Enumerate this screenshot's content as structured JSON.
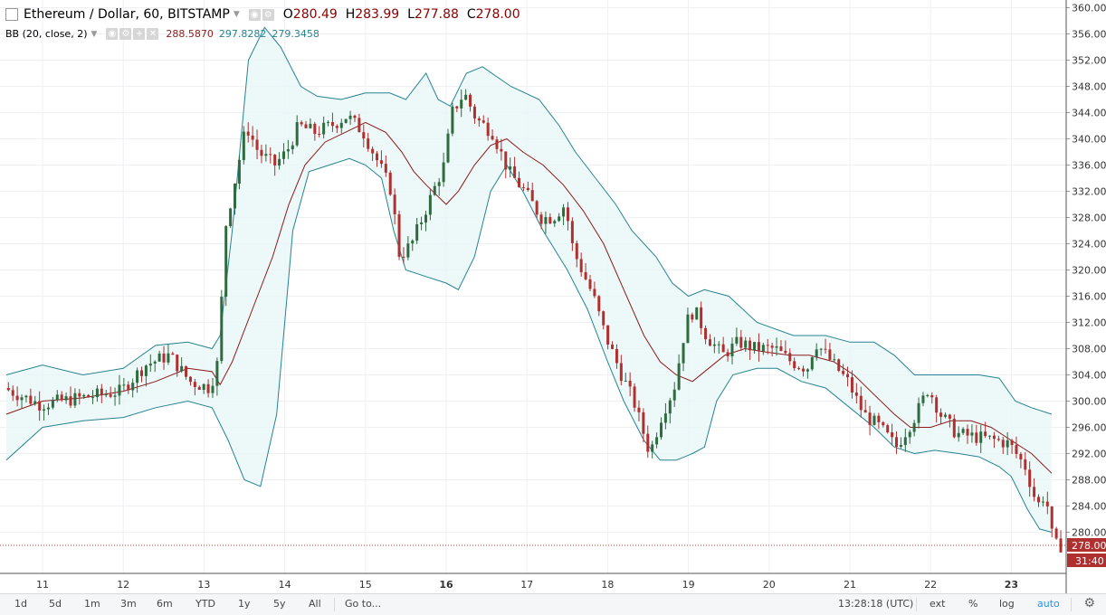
{
  "legend": {
    "symbol": "Ethereum / Dollar, 60, BITSTAMP",
    "o_label": "O",
    "o_value": "280.49",
    "h_label": "H",
    "h_value": "283.99",
    "l_label": "L",
    "l_value": "277.88",
    "c_label": "C",
    "c_value": "278.00",
    "bb_label": "BB (20, close, 2)",
    "bb_middle": "288.5870",
    "bb_upper": "297.8282",
    "bb_lower": "279.3458"
  },
  "price_badge": "278.00",
  "countdown_badge": "31:40",
  "colors": {
    "up": "#2e6b3f",
    "down": "#b03030",
    "band": "#26838f",
    "band_fill": "#e8f6f7",
    "basis": "#8b1a1a",
    "price_line": "#c0392b"
  },
  "chart_data": {
    "type": "candlestick",
    "title": "Ethereum / Dollar, 60, BITSTAMP",
    "y_ticks": [
      "360.00",
      "356.00",
      "352.00",
      "348.00",
      "344.00",
      "340.00",
      "336.00",
      "332.00",
      "328.00",
      "324.00",
      "320.00",
      "316.00",
      "312.00",
      "308.00",
      "304.00",
      "300.00",
      "296.00",
      "292.00",
      "288.00",
      "284.00",
      "280.00"
    ],
    "x_ticks": [
      "11",
      "12",
      "13",
      "14",
      "15",
      "16",
      "17",
      "18",
      "19",
      "20",
      "21",
      "22",
      "23"
    ],
    "ylim": [
      277,
      360.5
    ],
    "last_close": 278.0,
    "x_days_range": [
      10.55,
      23.65
    ],
    "price_path": [
      [
        10.55,
        302
      ],
      [
        11.0,
        299.5
      ],
      [
        11.5,
        300.5
      ],
      [
        12.0,
        301.5
      ],
      [
        12.3,
        305.5
      ],
      [
        12.6,
        307
      ],
      [
        12.85,
        303
      ],
      [
        13.1,
        302
      ],
      [
        13.2,
        306
      ],
      [
        13.3,
        327
      ],
      [
        13.45,
        336
      ],
      [
        13.55,
        342
      ],
      [
        13.7,
        338
      ],
      [
        13.9,
        336
      ],
      [
        14.05,
        338
      ],
      [
        14.2,
        342
      ],
      [
        14.4,
        341
      ],
      [
        14.6,
        342
      ],
      [
        14.8,
        343.5
      ],
      [
        15.0,
        341
      ],
      [
        15.2,
        336
      ],
      [
        15.35,
        332
      ],
      [
        15.45,
        322
      ],
      [
        15.6,
        324
      ],
      [
        15.8,
        330
      ],
      [
        16.0,
        336
      ],
      [
        16.1,
        344
      ],
      [
        16.25,
        347
      ],
      [
        16.4,
        343
      ],
      [
        16.6,
        341
      ],
      [
        16.8,
        335
      ],
      [
        17.0,
        332
      ],
      [
        17.2,
        328
      ],
      [
        17.35,
        328
      ],
      [
        17.5,
        330
      ],
      [
        17.6,
        323
      ],
      [
        17.85,
        316
      ],
      [
        18.0,
        310
      ],
      [
        18.2,
        304
      ],
      [
        18.35,
        300
      ],
      [
        18.55,
        292
      ],
      [
        18.7,
        298
      ],
      [
        18.85,
        302
      ],
      [
        19.0,
        312
      ],
      [
        19.1,
        314
      ],
      [
        19.25,
        310
      ],
      [
        19.45,
        307
      ],
      [
        19.65,
        309
      ],
      [
        19.85,
        308
      ],
      [
        20.1,
        308
      ],
      [
        20.3,
        306
      ],
      [
        20.5,
        305
      ],
      [
        20.6,
        309
      ],
      [
        20.8,
        306
      ],
      [
        21.0,
        303
      ],
      [
        21.2,
        298
      ],
      [
        21.4,
        296
      ],
      [
        21.6,
        293
      ],
      [
        21.85,
        298
      ],
      [
        22.0,
        302
      ],
      [
        22.15,
        298
      ],
      [
        22.35,
        295
      ],
      [
        22.6,
        294.5
      ],
      [
        22.85,
        294
      ],
      [
        23.0,
        293.5
      ],
      [
        23.2,
        290
      ],
      [
        23.35,
        284
      ],
      [
        23.45,
        286
      ],
      [
        23.55,
        278
      ]
    ],
    "bb_upper_path": [
      [
        10.55,
        304
      ],
      [
        11.0,
        305.5
      ],
      [
        11.5,
        304
      ],
      [
        12.0,
        305
      ],
      [
        12.4,
        308.5
      ],
      [
        12.8,
        309
      ],
      [
        13.1,
        308
      ],
      [
        13.2,
        310
      ],
      [
        13.35,
        326
      ],
      [
        13.55,
        352
      ],
      [
        13.75,
        357
      ],
      [
        13.95,
        354
      ],
      [
        14.2,
        348
      ],
      [
        14.4,
        346.5
      ],
      [
        14.7,
        346
      ],
      [
        15.0,
        347
      ],
      [
        15.3,
        347
      ],
      [
        15.5,
        346
      ],
      [
        15.75,
        350
      ],
      [
        15.9,
        346
      ],
      [
        16.05,
        345
      ],
      [
        16.25,
        350
      ],
      [
        16.45,
        351
      ],
      [
        16.8,
        348
      ],
      [
        17.15,
        346
      ],
      [
        17.4,
        342
      ],
      [
        17.6,
        338
      ],
      [
        17.85,
        334
      ],
      [
        18.1,
        330
      ],
      [
        18.3,
        326
      ],
      [
        18.6,
        322
      ],
      [
        18.8,
        318
      ],
      [
        19.0,
        316
      ],
      [
        19.2,
        317
      ],
      [
        19.5,
        316
      ],
      [
        19.85,
        312
      ],
      [
        20.3,
        310
      ],
      [
        20.7,
        310
      ],
      [
        21.0,
        309
      ],
      [
        21.3,
        309
      ],
      [
        21.55,
        307
      ],
      [
        21.8,
        304
      ],
      [
        22.0,
        304
      ],
      [
        22.3,
        304
      ],
      [
        22.6,
        304
      ],
      [
        22.85,
        303.5
      ],
      [
        23.05,
        300
      ],
      [
        23.25,
        299
      ],
      [
        23.5,
        298
      ]
    ],
    "bb_lower_path": [
      [
        10.55,
        291
      ],
      [
        11.0,
        296
      ],
      [
        11.5,
        297
      ],
      [
        12.0,
        297.5
      ],
      [
        12.4,
        299
      ],
      [
        12.8,
        300
      ],
      [
        13.1,
        299
      ],
      [
        13.3,
        294
      ],
      [
        13.5,
        288
      ],
      [
        13.7,
        287
      ],
      [
        13.9,
        298
      ],
      [
        14.1,
        326
      ],
      [
        14.3,
        335
      ],
      [
        14.55,
        336
      ],
      [
        14.8,
        337
      ],
      [
        15.0,
        336
      ],
      [
        15.2,
        334
      ],
      [
        15.35,
        326
      ],
      [
        15.5,
        320
      ],
      [
        15.75,
        319
      ],
      [
        16.0,
        318
      ],
      [
        16.15,
        317
      ],
      [
        16.35,
        322
      ],
      [
        16.55,
        332
      ],
      [
        16.75,
        336
      ],
      [
        16.95,
        332
      ],
      [
        17.2,
        326
      ],
      [
        17.5,
        320
      ],
      [
        17.75,
        314
      ],
      [
        18.0,
        306
      ],
      [
        18.2,
        300
      ],
      [
        18.45,
        294
      ],
      [
        18.65,
        291
      ],
      [
        18.85,
        291
      ],
      [
        19.05,
        292
      ],
      [
        19.2,
        293
      ],
      [
        19.35,
        300
      ],
      [
        19.55,
        304
      ],
      [
        19.85,
        305
      ],
      [
        20.1,
        305
      ],
      [
        20.4,
        303
      ],
      [
        20.7,
        302
      ],
      [
        21.0,
        299
      ],
      [
        21.3,
        296
      ],
      [
        21.55,
        293
      ],
      [
        21.8,
        292
      ],
      [
        22.05,
        292.5
      ],
      [
        22.35,
        292
      ],
      [
        22.6,
        291.5
      ],
      [
        22.85,
        290
      ],
      [
        23.0,
        288.5
      ],
      [
        23.2,
        283.5
      ],
      [
        23.35,
        280.5
      ],
      [
        23.5,
        280
      ]
    ],
    "bb_basis_path": [
      [
        10.55,
        298
      ],
      [
        11.0,
        300
      ],
      [
        11.5,
        300.5
      ],
      [
        12.0,
        301.5
      ],
      [
        12.4,
        303
      ],
      [
        12.8,
        305
      ],
      [
        13.1,
        304.5
      ],
      [
        13.2,
        302.5
      ],
      [
        13.35,
        306
      ],
      [
        13.6,
        314
      ],
      [
        13.85,
        322
      ],
      [
        14.05,
        330
      ],
      [
        14.25,
        336
      ],
      [
        14.5,
        339.5
      ],
      [
        14.75,
        341
      ],
      [
        15.0,
        342.5
      ],
      [
        15.25,
        341
      ],
      [
        15.45,
        338
      ],
      [
        15.6,
        335
      ],
      [
        15.75,
        333
      ],
      [
        16.0,
        330
      ],
      [
        16.15,
        332
      ],
      [
        16.35,
        336
      ],
      [
        16.55,
        339
      ],
      [
        16.75,
        340
      ],
      [
        16.95,
        338
      ],
      [
        17.2,
        336
      ],
      [
        17.45,
        333
      ],
      [
        17.7,
        329
      ],
      [
        17.95,
        324
      ],
      [
        18.2,
        317
      ],
      [
        18.45,
        310
      ],
      [
        18.65,
        306
      ],
      [
        18.85,
        304
      ],
      [
        19.05,
        303
      ],
      [
        19.25,
        305
      ],
      [
        19.45,
        307
      ],
      [
        19.7,
        308
      ],
      [
        19.95,
        307.5
      ],
      [
        20.25,
        307
      ],
      [
        20.5,
        307
      ],
      [
        20.8,
        306
      ],
      [
        21.05,
        304
      ],
      [
        21.3,
        301
      ],
      [
        21.55,
        298
      ],
      [
        21.75,
        296
      ],
      [
        22.0,
        296
      ],
      [
        22.25,
        297
      ],
      [
        22.5,
        297
      ],
      [
        22.75,
        296
      ],
      [
        23.0,
        294
      ],
      [
        23.25,
        292
      ],
      [
        23.5,
        289
      ]
    ]
  },
  "bottom": {
    "ranges": [
      "1d",
      "5d",
      "1m",
      "3m",
      "6m",
      "YTD",
      "1y",
      "5y",
      "All"
    ],
    "goto": "Go to...",
    "time": "13:28:18 (UTC)",
    "ext": "ext",
    "pct": "%",
    "log": "log",
    "auto": "auto"
  }
}
